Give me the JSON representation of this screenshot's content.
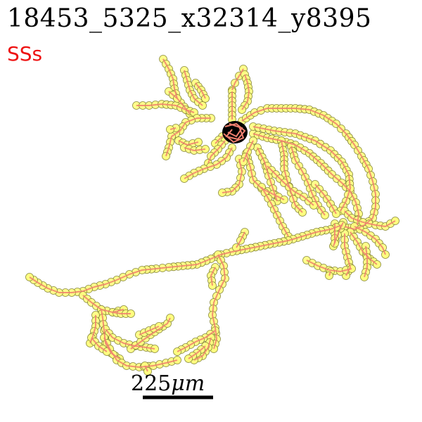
{
  "header": {
    "title": "18453_5325_x32314_y8395",
    "subtitle": "SSs"
  },
  "scalebar": {
    "value": "225",
    "unit": "μm"
  },
  "colors": {
    "title": "#000000",
    "subtitle": "#ee1111",
    "branch": "#f08070",
    "node_fill": "#ffff80",
    "node_stroke": "#8a8a3a",
    "soma": "#000000"
  }
}
